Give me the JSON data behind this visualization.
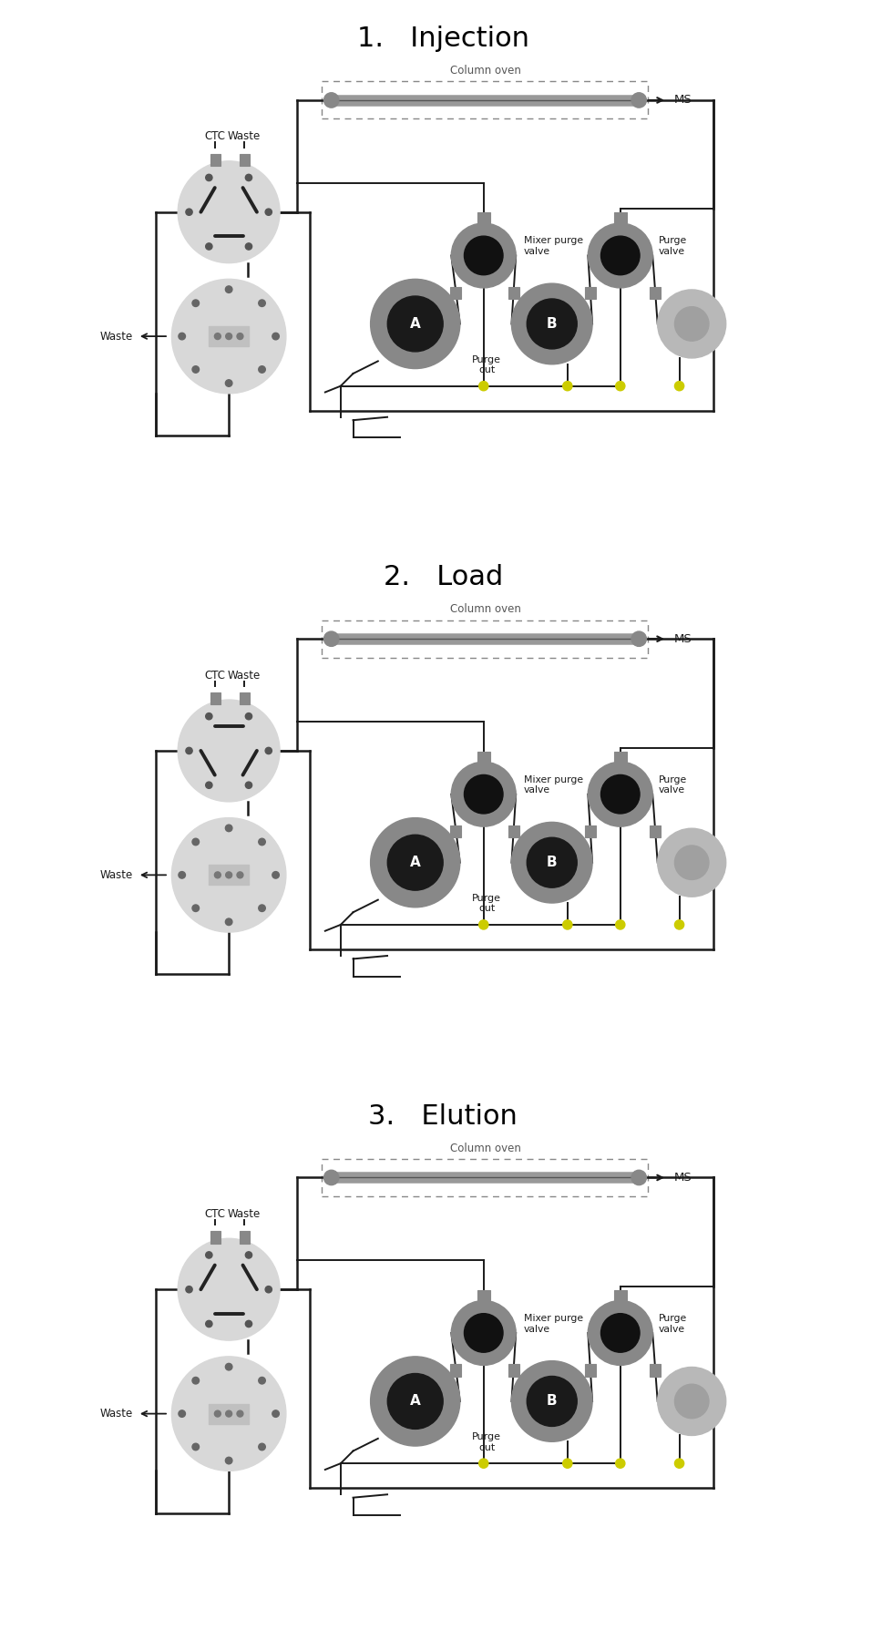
{
  "titles": [
    "1.   Injection",
    "2.   Load",
    "3.   Elution"
  ],
  "title_fontsize": 22,
  "bg_color": "#ffffff",
  "line_color": "#1a1a1a",
  "gray_dark": "#444444",
  "gray_mid": "#888888",
  "gray_light": "#cccccc",
  "gray_valve": "#777777",
  "black_center": "#0d0d0d",
  "column_color": "#aaaaaa",
  "yellow": "#cccc00",
  "connector_color": "#999999"
}
